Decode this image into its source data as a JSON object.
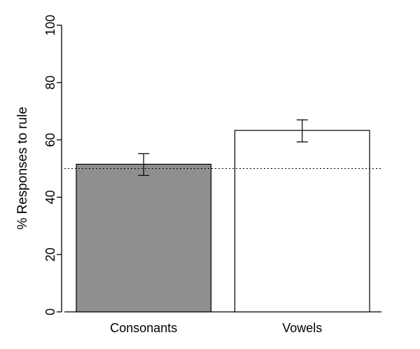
{
  "chart_data": {
    "type": "bar",
    "title": "",
    "xlabel": "",
    "ylabel": "% Responses to rule",
    "ylim": [
      0,
      100
    ],
    "yticks": [
      0,
      20,
      40,
      60,
      80,
      100
    ],
    "categories": [
      "Consonants",
      "Vowels"
    ],
    "values": [
      51.5,
      63.3
    ],
    "error_bars": [
      {
        "low": 47.6,
        "high": 55.2
      },
      {
        "low": 59.3,
        "high": 67.0
      }
    ],
    "bar_colors": [
      "#8f8f8f",
      "#ffffff"
    ],
    "reference_line": {
      "y": 50,
      "style": "dotted"
    },
    "grid": false,
    "legend": "none"
  }
}
